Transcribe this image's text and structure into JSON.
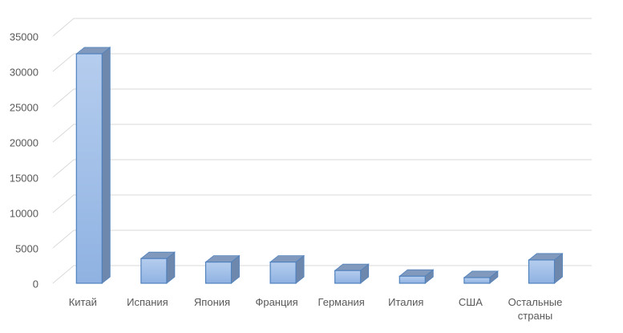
{
  "chart_data": {
    "type": "bar3d",
    "categories": [
      "Китай",
      "Испания",
      "Япония",
      "Франция",
      "Германия",
      "Италия",
      "США",
      "Остальные страны"
    ],
    "values": [
      32500,
      3500,
      3000,
      3000,
      1800,
      1000,
      800,
      3300
    ],
    "color": "#9dbde8",
    "ylim": [
      0,
      35000
    ],
    "yticks": [
      0,
      5000,
      10000,
      15000,
      20000,
      25000,
      30000,
      35000
    ],
    "grid": true
  }
}
